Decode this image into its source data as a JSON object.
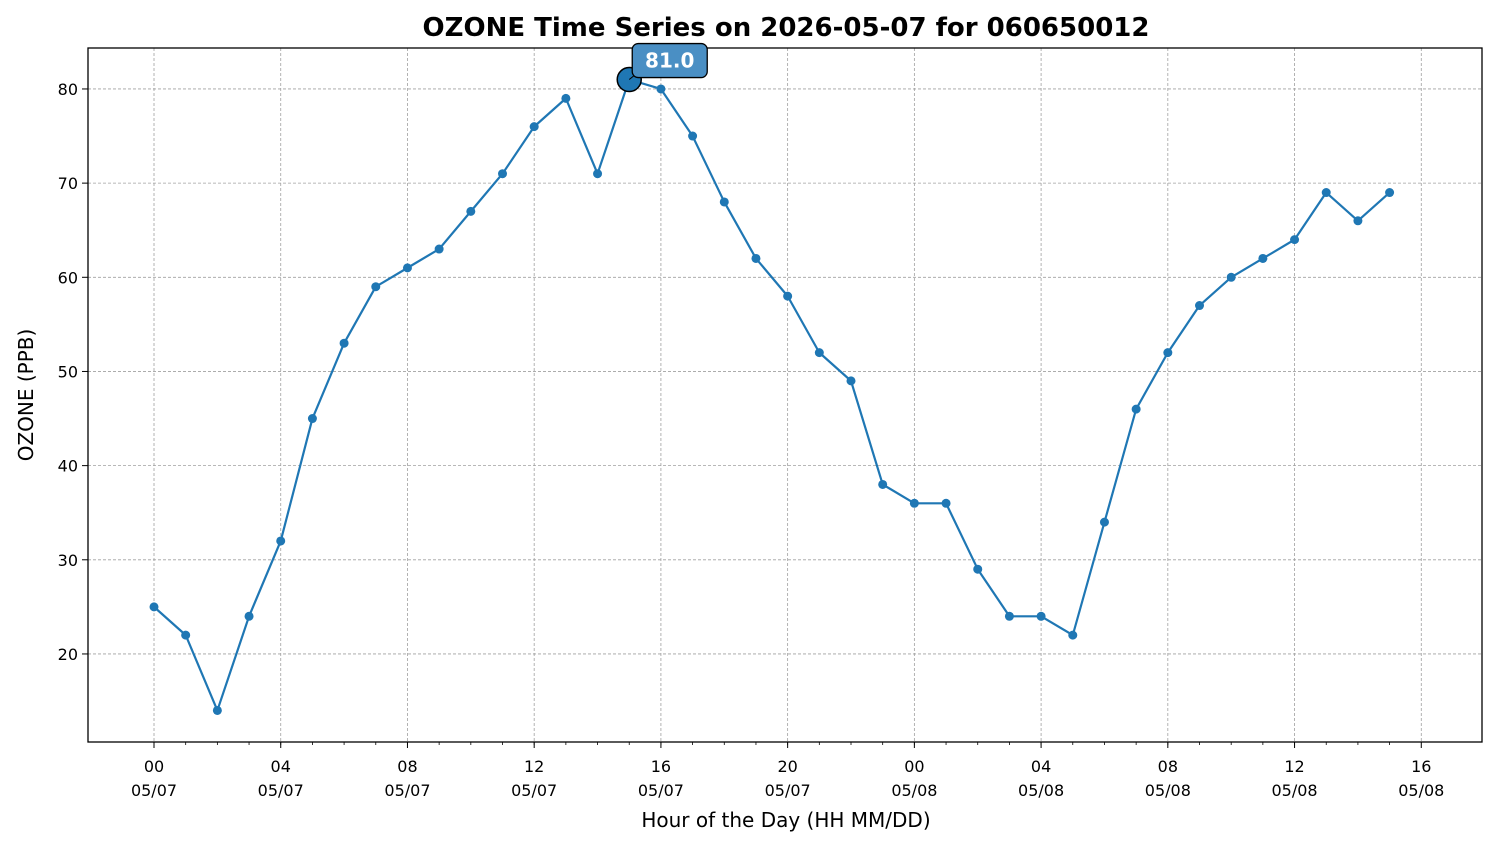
{
  "chart_data": {
    "type": "line",
    "title": "OZONE Time Series on 2026-05-07 for 060650012",
    "xlabel": "Hour of the Day (HH MM/DD)",
    "ylabel": "OZONE (PPB)",
    "x": [
      "2026-05-07 00:00",
      "2026-05-07 01:00",
      "2026-05-07 02:00",
      "2026-05-07 03:00",
      "2026-05-07 04:00",
      "2026-05-07 05:00",
      "2026-05-07 06:00",
      "2026-05-07 07:00",
      "2026-05-07 08:00",
      "2026-05-07 09:00",
      "2026-05-07 10:00",
      "2026-05-07 11:00",
      "2026-05-07 12:00",
      "2026-05-07 13:00",
      "2026-05-07 14:00",
      "2026-05-07 15:00",
      "2026-05-07 16:00",
      "2026-05-07 17:00",
      "2026-05-07 18:00",
      "2026-05-07 19:00",
      "2026-05-07 20:00",
      "2026-05-07 21:00",
      "2026-05-07 22:00",
      "2026-05-07 23:00",
      "2026-05-08 00:00",
      "2026-05-08 01:00",
      "2026-05-08 02:00",
      "2026-05-08 03:00",
      "2026-05-08 04:00",
      "2026-05-08 05:00",
      "2026-05-08 06:00",
      "2026-05-08 07:00",
      "2026-05-08 08:00",
      "2026-05-08 09:00",
      "2026-05-08 10:00",
      "2026-05-08 11:00",
      "2026-05-08 12:00",
      "2026-05-08 13:00",
      "2026-05-08 14:00",
      "2026-05-08 15:00"
    ],
    "series": [
      {
        "values": [
          25,
          22,
          14,
          24,
          32,
          45,
          53,
          59,
          61,
          63,
          67,
          71,
          76,
          79,
          71,
          81,
          80,
          75,
          68,
          62,
          58,
          52,
          49,
          38,
          36,
          36,
          29,
          24,
          24,
          22,
          34,
          46,
          52,
          57,
          60,
          62,
          64,
          69,
          66,
          69
        ],
        "color": "#1f77b4"
      }
    ],
    "xlim": [
      "2026-05-06 21:55",
      "2026-05-08 17:55"
    ],
    "ylim": [
      10.65,
      84.35
    ],
    "y_ticks": [
      20,
      30,
      40,
      50,
      60,
      70,
      80
    ],
    "x_ticks": [
      {
        "x": "2026-05-07 00:00",
        "hour": "00",
        "date": "05/07"
      },
      {
        "x": "2026-05-07 04:00",
        "hour": "04",
        "date": "05/07"
      },
      {
        "x": "2026-05-07 08:00",
        "hour": "08",
        "date": "05/07"
      },
      {
        "x": "2026-05-07 12:00",
        "hour": "12",
        "date": "05/07"
      },
      {
        "x": "2026-05-07 16:00",
        "hour": "16",
        "date": "05/07"
      },
      {
        "x": "2026-05-07 20:00",
        "hour": "20",
        "date": "05/07"
      },
      {
        "x": "2026-05-08 00:00",
        "hour": "00",
        "date": "05/08"
      },
      {
        "x": "2026-05-08 04:00",
        "hour": "04",
        "date": "05/08"
      },
      {
        "x": "2026-05-08 08:00",
        "hour": "08",
        "date": "05/08"
      },
      {
        "x": "2026-05-08 12:00",
        "hour": "12",
        "date": "05/08"
      },
      {
        "x": "2026-05-08 16:00",
        "hour": "16",
        "date": "05/08"
      }
    ],
    "grid": true,
    "annotation": {
      "x": "2026-05-07 15:00",
      "y": 81,
      "label": "81.0",
      "box_color": "#4a8fc4"
    }
  }
}
